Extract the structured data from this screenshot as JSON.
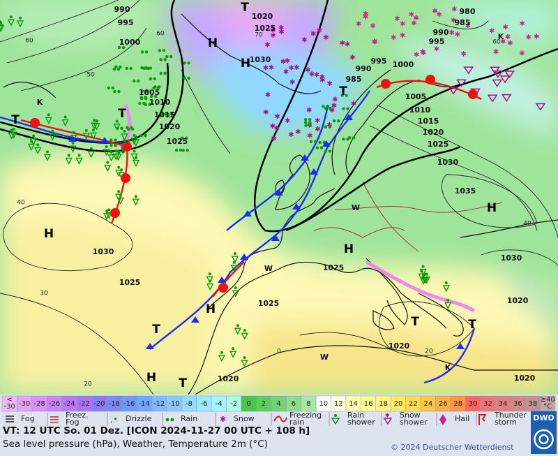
{
  "map_labels": [
    "990",
    "995",
    "1000",
    "T",
    "1020",
    "1025",
    "H",
    "H",
    "1030",
    "980",
    "985",
    "990",
    "995",
    "995",
    "1000",
    "990",
    "985",
    "T",
    "1005",
    "1010",
    "1015",
    "1020",
    "1025",
    "T",
    "T",
    "1005",
    "1010",
    "1015",
    "1020",
    "1025",
    "1030",
    "1035",
    "H",
    "H",
    "1030",
    "1025",
    "H",
    "1025",
    "1030",
    "1025",
    "H",
    "T",
    "T",
    "T",
    "1020",
    "1020",
    "H",
    "T",
    "1020",
    "1020",
    "W",
    "W",
    "W",
    "K",
    "K",
    "K",
    "60",
    "50",
    "40",
    "30",
    "20",
    "70",
    "60",
    "20",
    "40",
    "60",
    "0"
  ],
  "temperature_scale": [
    {
      "lines": [
        "<",
        "-30"
      ],
      "color": "#f0b8f8"
    },
    {
      "label": "-30",
      "color": "#e4a4f4"
    },
    {
      "label": "-28",
      "color": "#d894f4"
    },
    {
      "label": "-26",
      "color": "#cc84f4"
    },
    {
      "label": "-24",
      "color": "#bc78f4"
    },
    {
      "label": "-22",
      "color": "#a874f4"
    },
    {
      "label": "-20",
      "color": "#8c7cf4"
    },
    {
      "label": "-18",
      "color": "#7c88f8"
    },
    {
      "label": "-16",
      "color": "#7098fc"
    },
    {
      "label": "-14",
      "color": "#70a8ff"
    },
    {
      "label": "-12",
      "color": "#7cbcff"
    },
    {
      "label": "-10",
      "color": "#88ccff"
    },
    {
      "label": "-8",
      "color": "#94dcff"
    },
    {
      "label": "-6",
      "color": "#9ce8ff"
    },
    {
      "label": "-4",
      "color": "#a4f4f8"
    },
    {
      "label": "-2",
      "color": "#acfce8"
    },
    {
      "label": "0",
      "color": "#4cc44c"
    },
    {
      "label": "2",
      "color": "#5ccc5c"
    },
    {
      "label": "4",
      "color": "#74d474"
    },
    {
      "label": "6",
      "color": "#8cdc8c"
    },
    {
      "label": "8",
      "color": "#a8e8a4"
    },
    {
      "label": "10",
      "color": "#ffffff"
    },
    {
      "label": "12",
      "color": "#ffffdc"
    },
    {
      "label": "14",
      "color": "#ffffb4"
    },
    {
      "label": "16",
      "color": "#ffff94"
    },
    {
      "label": "18",
      "color": "#fff878"
    },
    {
      "label": "20",
      "color": "#ffec60"
    },
    {
      "label": "22",
      "color": "#ffdc50"
    },
    {
      "label": "24",
      "color": "#ffc840"
    },
    {
      "label": "26",
      "color": "#ffae40"
    },
    {
      "label": "28",
      "color": "#ff9444"
    },
    {
      "label": "30",
      "color": "#ff6464"
    },
    {
      "label": "32",
      "color": "#f07474"
    },
    {
      "label": "34",
      "color": "#e08080"
    },
    {
      "label": "36",
      "color": "#d08888"
    },
    {
      "label": "38",
      "color": "#c49090"
    },
    {
      "lines": [
        "≥40",
        "°C"
      ],
      "color": "#c8a4a4"
    }
  ],
  "weather_legend": [
    {
      "lines": [
        "Fog"
      ]
    },
    {
      "lines": [
        "Freez.",
        "Fog"
      ]
    },
    {
      "lines": [
        "Drizzle"
      ]
    },
    {
      "lines": [
        "Rain"
      ]
    },
    {
      "lines": [
        "Snow"
      ]
    },
    {
      "lines": [
        "Freezing",
        "rain"
      ]
    },
    {
      "lines": [
        "Rain",
        "shower"
      ]
    },
    {
      "lines": [
        "Snow",
        "shower"
      ]
    },
    {
      "lines": [
        "Hail"
      ]
    },
    {
      "lines": [
        "Thunder",
        "storm"
      ]
    }
  ],
  "footer": {
    "valid_time": "VT: 12 UTC So.  01 Dez. [ICON 2024-11-27  00 UTC + 108 h]",
    "description": "Sea level pressure (hPa), Weather, Temperature 2m (°C)",
    "copyright": "© 2024 Deutscher Wetterdienst",
    "logo": "DWD"
  }
}
